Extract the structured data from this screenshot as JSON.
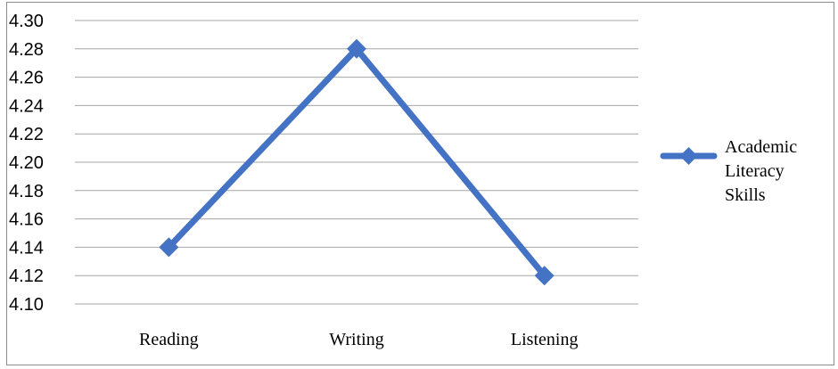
{
  "chart_data": {
    "type": "line",
    "title": "",
    "xlabel": "",
    "ylabel": "",
    "categories": [
      "Reading",
      "Writing",
      "Listening"
    ],
    "series": [
      {
        "name": "Academic Literacy Skills",
        "name_lines": [
          "Academic",
          "Literacy",
          "Skills"
        ],
        "values": [
          4.14,
          4.28,
          4.12
        ],
        "color": "#4472c4",
        "marker": "diamond"
      }
    ],
    "ylim": [
      4.1,
      4.3
    ],
    "yticks": [
      "4.30",
      "4.28",
      "4.26",
      "4.24",
      "4.22",
      "4.20",
      "4.18",
      "4.16",
      "4.14",
      "4.12",
      "4.10"
    ],
    "grid": true,
    "legend_position": "right"
  }
}
